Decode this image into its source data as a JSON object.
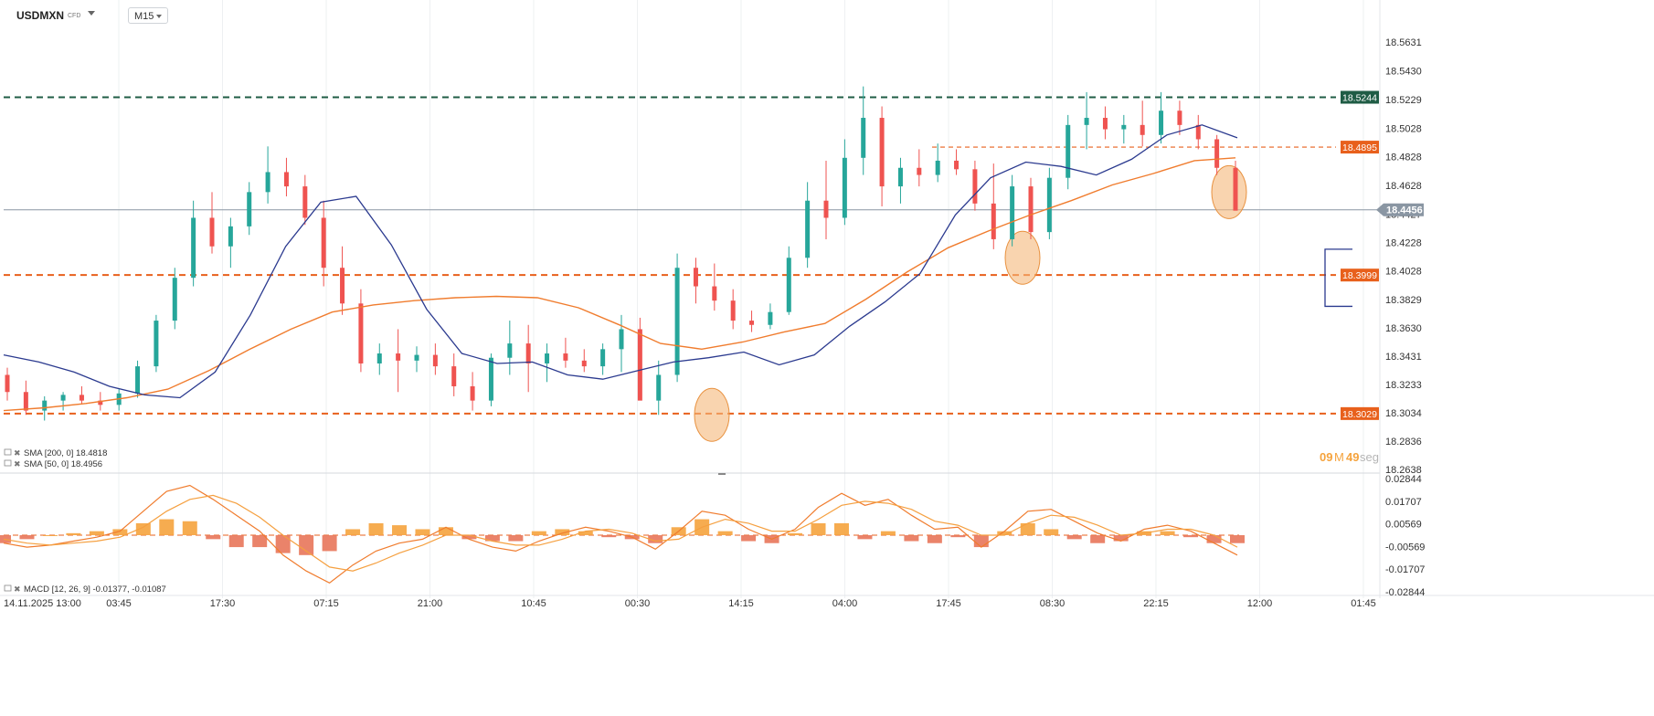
{
  "header": {
    "symbol": "USDMXN",
    "symbol_type": "CFD",
    "timeframe": "M15"
  },
  "countdown": {
    "minutes": "09",
    "minutes_unit": "M",
    "seconds": "49",
    "seconds_unit": "seg"
  },
  "colors": {
    "up_candle": "#26a69a",
    "down_candle": "#ef5350",
    "sma50": "#2b3a8f",
    "sma200": "#f07c2e",
    "resistance": "#1f5c45",
    "level_orange": "#e8601c",
    "current_price": "#8a96a3",
    "highlight_fill": "#f5b87a",
    "macd_hist": "#f5a33d",
    "macd_hist_neg": "#e8765a"
  },
  "chart_data": [
    {
      "type": "candlestick",
      "name": "USDMXN",
      "y_ticks": [
        "18.5631",
        "18.5430",
        "18.5229",
        "18.5028",
        "18.4828",
        "18.4628",
        "18.4427",
        "18.4228",
        "18.4028",
        "18.3829",
        "18.3630",
        "18.3431",
        "18.3233",
        "18.3034",
        "18.2836",
        "18.2638"
      ],
      "ylim": [
        18.2638,
        18.5631
      ],
      "x_tick_labels": [
        "14.11.2025  13:00",
        "03:45",
        "17:30",
        "07:15",
        "21:00",
        "10:45",
        "00:30",
        "14:15",
        "04:00",
        "17:45",
        "08:30",
        "22:15",
        "12:00",
        "01:45"
      ],
      "current_price": 18.4456,
      "price_lines": [
        {
          "label": "18.5244",
          "value": 18.5244,
          "style": "dashed",
          "color": "resistance"
        },
        {
          "label": "18.4895",
          "value": 18.4895,
          "style": "dashed-thin",
          "color": "level_orange"
        },
        {
          "label": "18.3999",
          "value": 18.3999,
          "style": "dashed",
          "color": "level_orange"
        },
        {
          "label": "18.3029",
          "value": 18.3029,
          "style": "dashed",
          "color": "level_orange"
        },
        {
          "label": "18.4456",
          "value": 18.4456,
          "style": "solid",
          "color": "current_price"
        }
      ],
      "indicators": [
        {
          "label": "SMA [200, 0]",
          "value": "18.4818"
        },
        {
          "label": "SMA [50, 0]",
          "value": "18.4956"
        }
      ],
      "sma50": [
        18.344,
        18.339,
        18.332,
        18.322,
        18.316,
        18.314,
        18.332,
        18.372,
        18.42,
        18.451,
        18.455,
        18.421,
        18.376,
        18.345,
        18.338,
        18.339,
        18.33,
        18.327,
        18.333,
        18.339,
        18.342,
        18.346,
        18.337,
        18.344,
        18.364,
        18.381,
        18.401,
        18.442,
        18.468,
        18.479,
        18.476,
        18.47,
        18.481,
        18.498,
        18.505,
        18.496
      ],
      "sma200": [
        18.305,
        18.307,
        18.31,
        18.314,
        18.32,
        18.333,
        18.348,
        18.362,
        18.374,
        18.379,
        18.382,
        18.384,
        18.385,
        18.384,
        18.377,
        18.365,
        18.352,
        18.348,
        18.353,
        18.36,
        18.366,
        18.383,
        18.402,
        18.419,
        18.431,
        18.442,
        18.452,
        18.463,
        18.471,
        18.48,
        18.482
      ],
      "candles_sampled": [
        [
          18.33,
          18.335,
          18.312,
          18.318
        ],
        [
          18.318,
          18.326,
          18.302,
          18.305
        ],
        [
          18.305,
          18.315,
          18.298,
          18.312
        ],
        [
          18.312,
          18.318,
          18.305,
          18.316
        ],
        [
          18.316,
          18.322,
          18.31,
          18.312
        ],
        [
          18.312,
          18.318,
          18.305,
          18.309
        ],
        [
          18.309,
          18.32,
          18.305,
          18.317
        ],
        [
          18.317,
          18.34,
          18.314,
          18.336
        ],
        [
          18.336,
          18.372,
          18.332,
          18.368
        ],
        [
          18.368,
          18.405,
          18.362,
          18.398
        ],
        [
          18.398,
          18.452,
          18.392,
          18.44
        ],
        [
          18.44,
          18.458,
          18.415,
          18.42
        ],
        [
          18.42,
          18.44,
          18.405,
          18.434
        ],
        [
          18.434,
          18.465,
          18.428,
          18.458
        ],
        [
          18.458,
          18.49,
          18.45,
          18.472
        ],
        [
          18.472,
          18.482,
          18.455,
          18.462
        ],
        [
          18.462,
          18.47,
          18.435,
          18.44
        ],
        [
          18.44,
          18.452,
          18.392,
          18.405
        ],
        [
          18.405,
          18.42,
          18.372,
          18.38
        ],
        [
          18.38,
          18.39,
          18.332,
          18.338
        ],
        [
          18.338,
          18.352,
          18.33,
          18.345
        ],
        [
          18.345,
          18.362,
          18.318,
          18.34
        ],
        [
          18.34,
          18.35,
          18.332,
          18.344
        ],
        [
          18.344,
          18.352,
          18.33,
          18.336
        ],
        [
          18.336,
          18.345,
          18.315,
          18.322
        ],
        [
          18.322,
          18.332,
          18.305,
          18.312
        ],
        [
          18.312,
          18.345,
          18.308,
          18.342
        ],
        [
          18.342,
          18.368,
          18.33,
          18.352
        ],
        [
          18.352,
          18.365,
          18.318,
          18.338
        ],
        [
          18.338,
          18.352,
          18.325,
          18.345
        ],
        [
          18.345,
          18.356,
          18.335,
          18.34
        ],
        [
          18.34,
          18.348,
          18.332,
          18.336
        ],
        [
          18.336,
          18.352,
          18.33,
          18.348
        ],
        [
          18.348,
          18.372,
          18.332,
          18.362
        ],
        [
          18.362,
          18.37,
          18.32,
          18.312
        ],
        [
          18.312,
          18.34,
          18.302,
          18.33
        ],
        [
          18.33,
          18.415,
          18.325,
          18.405
        ],
        [
          18.405,
          18.412,
          18.38,
          18.392
        ],
        [
          18.392,
          18.408,
          18.375,
          18.382
        ],
        [
          18.382,
          18.39,
          18.362,
          18.368
        ],
        [
          18.368,
          18.375,
          18.36,
          18.365
        ],
        [
          18.365,
          18.38,
          18.362,
          18.374
        ],
        [
          18.374,
          18.42,
          18.372,
          18.412
        ],
        [
          18.412,
          18.465,
          18.405,
          18.452
        ],
        [
          18.452,
          18.48,
          18.425,
          18.44
        ],
        [
          18.44,
          18.495,
          18.435,
          18.482
        ],
        [
          18.482,
          18.532,
          18.47,
          18.51
        ],
        [
          18.51,
          18.518,
          18.448,
          18.462
        ],
        [
          18.462,
          18.482,
          18.45,
          18.475
        ],
        [
          18.475,
          18.488,
          18.462,
          18.47
        ],
        [
          18.47,
          18.492,
          18.465,
          18.48
        ],
        [
          18.48,
          18.488,
          18.47,
          18.474
        ],
        [
          18.474,
          18.48,
          18.445,
          18.45
        ],
        [
          18.45,
          18.478,
          18.418,
          18.425
        ],
        [
          18.425,
          18.47,
          18.42,
          18.462
        ],
        [
          18.462,
          18.468,
          18.425,
          18.43
        ],
        [
          18.43,
          18.475,
          18.425,
          18.468
        ],
        [
          18.468,
          18.512,
          18.46,
          18.505
        ],
        [
          18.505,
          18.528,
          18.488,
          18.51
        ],
        [
          18.51,
          18.518,
          18.495,
          18.502
        ],
        [
          18.502,
          18.512,
          18.492,
          18.505
        ],
        [
          18.505,
          18.522,
          18.49,
          18.498
        ],
        [
          18.498,
          18.528,
          18.492,
          18.515
        ],
        [
          18.515,
          18.522,
          18.498,
          18.505
        ],
        [
          18.505,
          18.512,
          18.488,
          18.495
        ],
        [
          18.495,
          18.498,
          18.47,
          18.475
        ],
        [
          18.475,
          18.48,
          18.448,
          18.445
        ]
      ],
      "highlights": [
        {
          "near_value": 18.302
        },
        {
          "near_value": 18.412
        },
        {
          "near_value": 18.458
        }
      ]
    },
    {
      "type": "macd",
      "label": "MACD [12, 26, 9]",
      "values_label": "-0.01377,  -0.01087",
      "y_ticks": [
        "0.02844",
        "0.01707",
        "0.00569",
        "-0.00569",
        "-0.01707",
        "-0.02844"
      ],
      "ylim": [
        -0.02844,
        0.02844
      ],
      "macd": [
        -0.004,
        -0.006,
        -0.005,
        -0.003,
        -0.001,
        0.002,
        0.012,
        0.022,
        0.025,
        0.018,
        0.01,
        0.002,
        -0.01,
        -0.018,
        -0.024,
        -0.015,
        -0.008,
        -0.004,
        -0.002,
        0.004,
        -0.002,
        -0.006,
        -0.008,
        -0.003,
        0.001,
        0.004,
        0.002,
        -0.001,
        -0.007,
        0.002,
        0.012,
        0.01,
        0.003,
        -0.002,
        0.003,
        0.014,
        0.021,
        0.015,
        0.018,
        0.01,
        0.003,
        0.004,
        -0.006,
        0.002,
        0.012,
        0.013,
        0.007,
        0.001,
        -0.003,
        0.003,
        0.005,
        0.002,
        -0.004,
        -0.01
      ],
      "signal": [
        -0.002,
        -0.004,
        -0.005,
        -0.004,
        -0.003,
        -0.001,
        0.004,
        0.012,
        0.018,
        0.02,
        0.016,
        0.009,
        0.0,
        -0.008,
        -0.016,
        -0.018,
        -0.014,
        -0.009,
        -0.005,
        0.0,
        0.0,
        -0.003,
        -0.005,
        -0.005,
        -0.002,
        0.002,
        0.003,
        0.001,
        -0.003,
        -0.002,
        0.004,
        0.008,
        0.006,
        0.002,
        0.002,
        0.008,
        0.015,
        0.017,
        0.016,
        0.013,
        0.007,
        0.005,
        0.0,
        0.0,
        0.006,
        0.01,
        0.009,
        0.005,
        0.0,
        0.001,
        0.003,
        0.003,
        0.0,
        -0.006
      ],
      "histogram": [
        -0.004,
        -0.002,
        0.0,
        0.001,
        0.002,
        0.003,
        0.006,
        0.008,
        0.007,
        -0.002,
        -0.006,
        -0.006,
        -0.009,
        -0.01,
        -0.008,
        0.003,
        0.006,
        0.005,
        0.003,
        0.004,
        -0.002,
        -0.003,
        -0.003,
        0.002,
        0.003,
        0.002,
        -0.001,
        -0.002,
        -0.004,
        0.004,
        0.008,
        0.002,
        -0.003,
        -0.004,
        0.001,
        0.006,
        0.006,
        -0.002,
        0.002,
        -0.003,
        -0.004,
        -0.001,
        -0.006,
        0.002,
        0.006,
        0.003,
        -0.002,
        -0.004,
        -0.003,
        0.002,
        0.002,
        -0.001,
        -0.004,
        -0.004
      ]
    }
  ]
}
